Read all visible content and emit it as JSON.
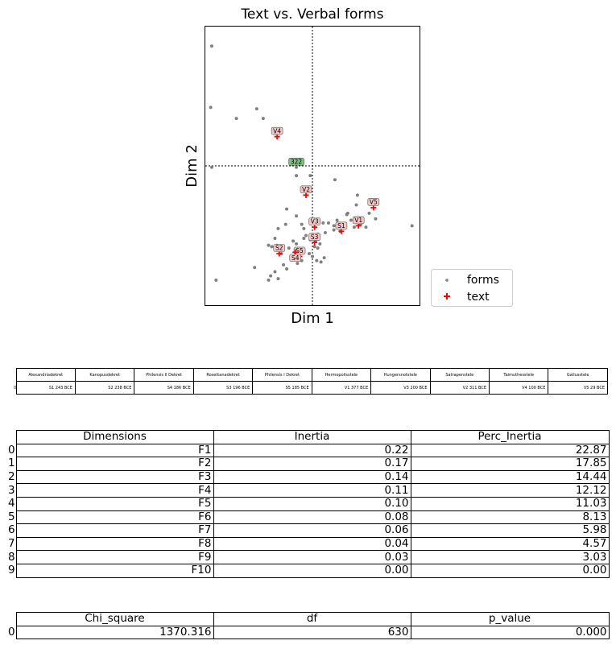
{
  "chart_data": {
    "type": "scatter",
    "title": "Text vs. Verbal forms",
    "xlabel": "Dim 1",
    "ylabel": "Dim 2",
    "xlim": [
      -1.0,
      1.0
    ],
    "ylim": [
      -1.0,
      1.0
    ],
    "grid": false,
    "reference_lines": {
      "x": 0,
      "y": 0
    },
    "legend": {
      "placement": "outside-lower-right",
      "entries": [
        "forms",
        "text"
      ]
    },
    "colors": {
      "forms": "#808080",
      "text": "#ff0000",
      "text_label_bg": "#f4c6c6",
      "highlight_label_bg": "#7fbf7f"
    },
    "series": [
      {
        "name": "forms",
        "marker": "dot",
        "points": [
          [
            -0.94,
            0.86
          ],
          [
            -0.95,
            0.42
          ],
          [
            -0.52,
            0.41
          ],
          [
            -0.46,
            0.34
          ],
          [
            -0.71,
            0.34
          ],
          [
            -0.94,
            -0.01
          ],
          [
            -0.15,
            -0.07
          ],
          [
            -0.02,
            -0.07
          ],
          [
            0.21,
            -0.1
          ],
          [
            0.33,
            -0.34
          ],
          [
            0.42,
            -0.21
          ],
          [
            0.53,
            -0.34
          ],
          [
            0.32,
            -0.35
          ],
          [
            0.41,
            -0.28
          ],
          [
            0.36,
            -0.39
          ],
          [
            0.59,
            -0.38
          ],
          [
            0.93,
            -0.43
          ],
          [
            0.1,
            -0.41
          ],
          [
            0.15,
            -0.41
          ],
          [
            0.2,
            -0.43
          ],
          [
            0.12,
            -0.48
          ],
          [
            0.39,
            -0.44
          ],
          [
            0.3,
            -0.44
          ],
          [
            0.45,
            -0.42
          ],
          [
            0.5,
            -0.44
          ],
          [
            0.26,
            -0.47
          ],
          [
            -0.24,
            -0.31
          ],
          [
            -0.15,
            -0.36
          ],
          [
            -0.25,
            -0.42
          ],
          [
            -0.1,
            -0.42
          ],
          [
            -0.02,
            -0.4
          ],
          [
            -0.08,
            -0.45
          ],
          [
            -0.32,
            -0.45
          ],
          [
            -0.06,
            -0.5
          ],
          [
            0.05,
            -0.49
          ],
          [
            -0.18,
            -0.54
          ],
          [
            -0.08,
            -0.52
          ],
          [
            -0.35,
            -0.52
          ],
          [
            -0.02,
            -0.53
          ],
          [
            0.03,
            -0.54
          ],
          [
            0.07,
            -0.56
          ],
          [
            -0.15,
            -0.56
          ],
          [
            -0.27,
            -0.58
          ],
          [
            -0.33,
            -0.57
          ],
          [
            -0.38,
            -0.58
          ],
          [
            -0.41,
            -0.57
          ],
          [
            -0.22,
            -0.59
          ],
          [
            -0.29,
            -0.63
          ],
          [
            -0.1,
            -0.6
          ],
          [
            0.02,
            -0.58
          ],
          [
            0.05,
            -0.59
          ],
          [
            -0.03,
            -0.63
          ],
          [
            0.0,
            -0.65
          ],
          [
            0.04,
            -0.68
          ],
          [
            0.08,
            -0.69
          ],
          [
            -0.1,
            -0.68
          ],
          [
            -0.14,
            -0.7
          ],
          [
            -0.27,
            -0.71
          ],
          [
            -0.24,
            -0.74
          ],
          [
            -0.54,
            -0.73
          ],
          [
            -0.35,
            -0.76
          ],
          [
            -0.39,
            -0.79
          ],
          [
            -0.41,
            -0.82
          ],
          [
            -0.32,
            -0.81
          ],
          [
            -0.9,
            -0.82
          ],
          [
            0.11,
            -0.66
          ],
          [
            0.23,
            -0.39
          ],
          [
            0.2,
            -0.46
          ]
        ]
      },
      {
        "name": "text",
        "marker": "plus",
        "points": [
          {
            "label": "V4",
            "x": -0.33,
            "y": 0.21
          },
          {
            "label": "V2",
            "x": -0.06,
            "y": -0.21
          },
          {
            "label": "V5",
            "x": 0.57,
            "y": -0.3
          },
          {
            "label": "V3",
            "x": 0.02,
            "y": -0.44
          },
          {
            "label": "S1",
            "x": 0.27,
            "y": -0.47
          },
          {
            "label": "V1",
            "x": 0.43,
            "y": -0.43
          },
          {
            "label": "S3",
            "x": 0.02,
            "y": -0.55
          },
          {
            "label": "S2",
            "x": -0.31,
            "y": -0.63
          },
          {
            "label": "S5",
            "x": -0.12,
            "y": -0.65
          },
          {
            "label": "S4",
            "x": -0.16,
            "y": -0.62
          }
        ]
      }
    ],
    "highlight_label": {
      "label": "322",
      "x": -0.15,
      "y": 0.03
    }
  },
  "text_table": {
    "columns": [
      "Alexandriadekret",
      "Kanopusdekret",
      "Philensis II Dekret",
      "Rosettanadekret",
      "Philensis I Dekret",
      "Hermopolisstele",
      "Hungersnotstele",
      "Satrapenstele",
      "Taimuthesstele",
      "Gallusstele"
    ],
    "row_index": "0",
    "values": [
      "S1 243 BCE",
      "S2 238 BCE",
      "S4 186 BCE",
      "S3 196 BCE",
      "S5 185 BCE",
      "V1 377 BCE",
      "V3 200 BCE",
      "V2 311 BCE",
      "V4 100 BCE",
      "V5 29 BCE"
    ]
  },
  "inertia_table": {
    "columns": [
      "Dimensions",
      "Inertia",
      "Perc_Inertia"
    ],
    "rows": [
      {
        "idx": "0",
        "cells": [
          "F1",
          "0.22",
          "22.87"
        ]
      },
      {
        "idx": "1",
        "cells": [
          "F2",
          "0.17",
          "17.85"
        ]
      },
      {
        "idx": "2",
        "cells": [
          "F3",
          "0.14",
          "14.44"
        ]
      },
      {
        "idx": "3",
        "cells": [
          "F4",
          "0.11",
          "12.12"
        ]
      },
      {
        "idx": "4",
        "cells": [
          "F5",
          "0.10",
          "11.03"
        ]
      },
      {
        "idx": "5",
        "cells": [
          "F6",
          "0.08",
          "8.13"
        ]
      },
      {
        "idx": "6",
        "cells": [
          "F7",
          "0.06",
          "5.98"
        ]
      },
      {
        "idx": "7",
        "cells": [
          "F8",
          "0.04",
          "4.57"
        ]
      },
      {
        "idx": "8",
        "cells": [
          "F9",
          "0.03",
          "3.03"
        ]
      },
      {
        "idx": "9",
        "cells": [
          "F10",
          "0.00",
          "0.00"
        ]
      }
    ]
  },
  "chi_table": {
    "columns": [
      "Chi_square",
      "df",
      "p_value"
    ],
    "rows": [
      {
        "idx": "0",
        "cells": [
          "1370.316",
          "630",
          "0.000"
        ]
      }
    ]
  }
}
